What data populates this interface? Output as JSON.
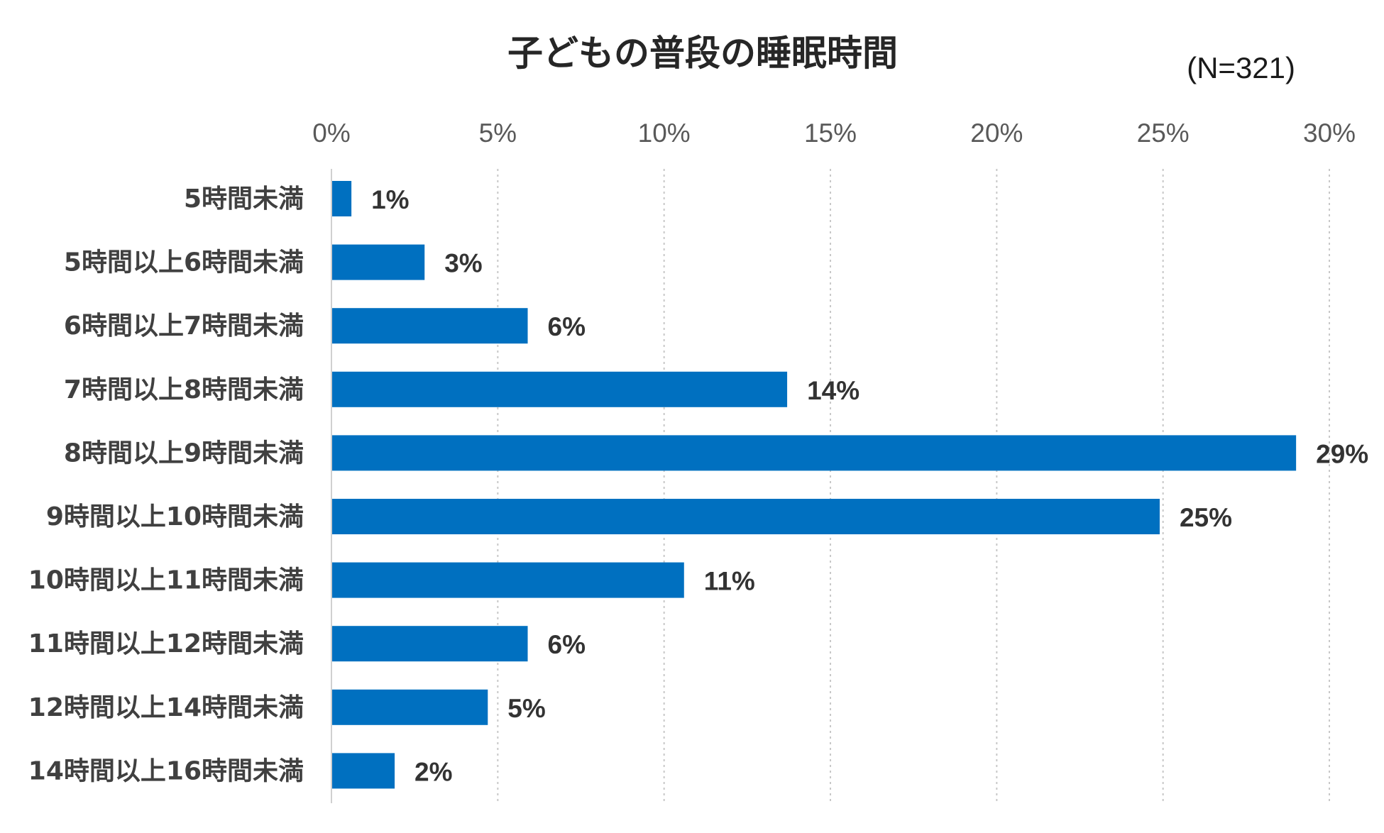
{
  "chart_data": {
    "type": "bar",
    "orientation": "horizontal",
    "title": "子どもの普段の睡眠時間",
    "sample_note": "(N=321)",
    "xlabel": "",
    "ylabel": "",
    "xlim": [
      0,
      30
    ],
    "tick_values": [
      0,
      5,
      10,
      15,
      20,
      25,
      30
    ],
    "tick_labels": [
      "0%",
      "5%",
      "10%",
      "15%",
      "20%",
      "25%",
      "30%"
    ],
    "grid": true,
    "legend": "none",
    "categories": [
      "5時間未満",
      "5時間以上6時間未満",
      "6時間以上7時間未満",
      "7時間以上8時間未満",
      "8時間以上9時間未満",
      "9時間以上10時間未満",
      "10時間以上11時間未満",
      "11時間以上12時間未満",
      "12時間以上14時間未満",
      "14時間以上16時間未満"
    ],
    "values": [
      0.6,
      2.8,
      5.9,
      13.7,
      29.0,
      24.9,
      10.6,
      5.9,
      4.7,
      1.9
    ],
    "value_labels": [
      "1%",
      "3%",
      "6%",
      "14%",
      "29%",
      "25%",
      "11%",
      "6%",
      "5%",
      "2%"
    ],
    "bar_color": "#0070C0"
  }
}
